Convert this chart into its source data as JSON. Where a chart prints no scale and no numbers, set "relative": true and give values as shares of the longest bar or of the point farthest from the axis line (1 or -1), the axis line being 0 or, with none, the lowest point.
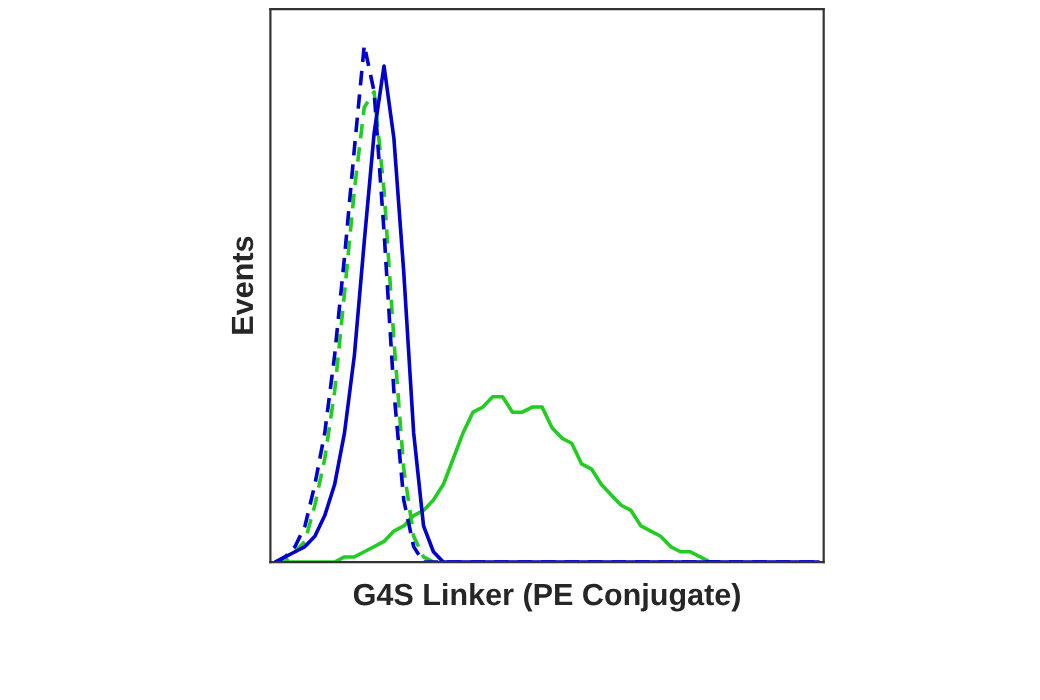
{
  "chart_data": {
    "type": "line",
    "relative": true,
    "xlabel": "G4S Linker (PE Conjugate)",
    "ylabel": "Events",
    "categories": [
      null,
      null,
      null,
      null,
      null,
      null,
      null,
      null,
      null,
      null,
      null,
      null,
      null,
      null,
      null,
      null,
      null,
      null,
      null,
      null,
      null,
      null,
      null,
      null,
      null,
      null,
      null,
      null,
      null,
      null,
      null,
      null,
      null,
      null,
      null,
      null,
      null,
      null,
      null,
      null,
      null,
      null,
      null,
      null,
      null,
      null,
      null,
      null,
      null,
      null,
      null,
      null,
      null,
      null,
      null,
      null
    ],
    "series": [
      {
        "color": "#22cc22",
        "line_style": "solid",
        "values": [
          0,
          0,
          0,
          0,
          0,
          0,
          0,
          0.01,
          0.01,
          0.02,
          0.03,
          0.04,
          0.06,
          0.07,
          0.09,
          0.1,
          0.12,
          0.15,
          0.2,
          0.25,
          0.29,
          0.3,
          0.32,
          0.32,
          0.29,
          0.29,
          0.3,
          0.3,
          0.26,
          0.24,
          0.23,
          0.19,
          0.18,
          0.15,
          0.13,
          0.11,
          0.1,
          0.07,
          0.06,
          0.05,
          0.03,
          0.02,
          0.02,
          0.01,
          0,
          0,
          null,
          null,
          null,
          null,
          null,
          null,
          null,
          null,
          null,
          null
        ]
      },
      {
        "color": "#22cc22",
        "line_style": "dashed",
        "values": [
          0,
          0,
          0.02,
          0.04,
          0.11,
          0.2,
          0.33,
          0.52,
          0.72,
          0.88,
          0.91,
          0.72,
          0.43,
          0.18,
          0.05,
          0.01,
          0,
          0,
          null,
          null,
          null,
          null,
          null,
          null,
          null,
          null,
          null,
          null,
          null,
          null,
          null,
          null,
          null,
          null,
          null,
          null,
          null,
          null,
          null,
          null,
          null,
          null,
          null,
          null,
          null,
          null,
          null,
          null,
          null,
          null,
          null,
          null,
          null,
          null,
          null,
          null
        ]
      },
      {
        "color": "#0000cc",
        "line_style": "solid",
        "values": [
          0,
          0.01,
          0.02,
          0.03,
          0.05,
          0.09,
          0.15,
          0.25,
          0.4,
          0.62,
          0.83,
          0.96,
          0.82,
          0.56,
          0.25,
          0.07,
          0.02,
          0,
          0,
          0,
          0,
          0,
          0,
          0,
          0,
          0,
          0,
          0,
          0,
          0,
          0,
          0,
          0,
          0,
          0,
          0,
          0,
          0,
          0,
          0,
          0,
          0,
          0,
          0,
          0,
          0,
          0,
          0,
          0,
          0,
          0,
          0,
          0,
          0,
          0,
          0
        ]
      },
      {
        "color": "#0000cc",
        "line_style": "dashed",
        "values": [
          0,
          0.01,
          0.03,
          0.07,
          0.15,
          0.25,
          0.4,
          0.59,
          0.8,
          1.0,
          0.91,
          0.64,
          0.33,
          0.12,
          0.03,
          0,
          0,
          0,
          0,
          0,
          0,
          0,
          0,
          0,
          0,
          0,
          0,
          0,
          0,
          0,
          0,
          0,
          0,
          0,
          0,
          0,
          0,
          0,
          0,
          0,
          0,
          0,
          0,
          0,
          0,
          0,
          0,
          0,
          0,
          0,
          0,
          0,
          0,
          0,
          0,
          0
        ]
      }
    ]
  }
}
